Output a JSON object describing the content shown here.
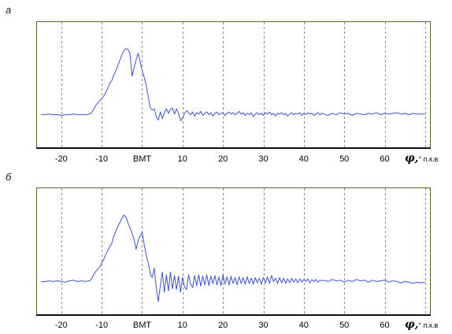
{
  "chart_data": [
    {
      "type": "line",
      "panel_label": "а",
      "xlabel": "φ,° п.к.в",
      "xlim": [
        -26.2,
        71.2
      ],
      "ylim": [
        -50,
        140
      ],
      "grid": true,
      "x_grid": [
        -20,
        -10,
        0,
        10,
        20,
        30,
        40,
        50,
        60,
        70
      ],
      "x_ticks": [
        {
          "value": -20,
          "label": "-20"
        },
        {
          "value": -10,
          "label": "-10"
        },
        {
          "value": 0,
          "label": "ВМТ"
        },
        {
          "value": 10,
          "label": "10"
        },
        {
          "value": 20,
          "label": "20"
        },
        {
          "value": 30,
          "label": "30"
        },
        {
          "value": 40,
          "label": "40"
        },
        {
          "value": 50,
          "label": "50"
        },
        {
          "value": 60,
          "label": "60"
        }
      ],
      "frame_color": "#55662a",
      "axis_color": "#111111",
      "grid_color": "#8c8c8c",
      "series": [
        {
          "color": "#3c54c6",
          "x": [
            -25,
            -24,
            -23,
            -22,
            -21,
            -20,
            -19,
            -18,
            -17,
            -16,
            -15,
            -14,
            -13,
            -12.5,
            -12,
            -11.5,
            -11,
            -10.5,
            -10,
            -9.5,
            -9,
            -8.5,
            -8,
            -7.5,
            -7,
            -6.5,
            -6,
            -5.5,
            -5,
            -4.5,
            -4,
            -3.5,
            -3,
            -2.5,
            -2,
            -1.5,
            -1,
            -0.5,
            0,
            0.5,
            1,
            1.5,
            2,
            2.5,
            3,
            3.5,
            4,
            4.5,
            5,
            5.5,
            6,
            6.5,
            7,
            7.5,
            8,
            8.5,
            9,
            9.5,
            10,
            10.5,
            11,
            11.5,
            12,
            12.5,
            13,
            13.5,
            14,
            14.5,
            15,
            15.5,
            16,
            16.5,
            17,
            17.5,
            18,
            18.5,
            19,
            19.5,
            20,
            20.5,
            21,
            21.5,
            22,
            22.5,
            23,
            23.5,
            24,
            24.5,
            25,
            25.5,
            26,
            26.5,
            27,
            27.5,
            28,
            28.5,
            29,
            29.5,
            30,
            30.5,
            31,
            31.5,
            32,
            32.5,
            33,
            33.5,
            34,
            34.5,
            35,
            35.5,
            36,
            36.5,
            37,
            37.5,
            38,
            38.5,
            39,
            39.5,
            40,
            40.5,
            41,
            41.5,
            42,
            42.5,
            43,
            43.5,
            44,
            44.5,
            45,
            46,
            47,
            48,
            49,
            50,
            51,
            52,
            53,
            54,
            55,
            56,
            57,
            58,
            59,
            60,
            61,
            62,
            63,
            64,
            65,
            66,
            67,
            68,
            69,
            70
          ],
          "y": [
            0,
            0,
            1,
            0,
            0,
            -1,
            0,
            0,
            1,
            0,
            0,
            0,
            1,
            3,
            8,
            14,
            17,
            21,
            24,
            28,
            33,
            40,
            47,
            51,
            60,
            66,
            74,
            82,
            90,
            96,
            99,
            98,
            92,
            58,
            70,
            82,
            92,
            80,
            66,
            56,
            44,
            28,
            10,
            7,
            9,
            -3,
            -8,
            4,
            -6,
            3,
            9,
            2,
            8,
            10,
            1,
            9,
            2,
            -9,
            -5,
            2,
            6,
            3,
            0,
            4,
            -2,
            3,
            1,
            5,
            -1,
            2,
            4,
            0,
            3,
            -2,
            2,
            4,
            0,
            2,
            3,
            -1,
            2,
            4,
            1,
            3,
            0,
            2,
            5,
            1,
            3,
            -1,
            2,
            0,
            3,
            -3,
            1,
            3,
            0,
            2,
            -1,
            3,
            1,
            4,
            0,
            2,
            -2,
            2,
            1,
            3,
            0,
            2,
            -2,
            1,
            3,
            0,
            2,
            1,
            3,
            -1,
            2,
            0,
            3,
            1,
            2,
            -1,
            1,
            3,
            0,
            2,
            1,
            -1,
            2,
            0,
            3,
            1,
            2,
            -1,
            2,
            1,
            0,
            2,
            1,
            3,
            0,
            2,
            1,
            2,
            3,
            1,
            2,
            0,
            2,
            1,
            1,
            1
          ]
        }
      ]
    },
    {
      "type": "line",
      "panel_label": "б",
      "xlabel": "φ,° п.к.в",
      "xlim": [
        -26.2,
        71.2
      ],
      "ylim": [
        -50,
        140
      ],
      "grid": true,
      "x_grid": [
        -20,
        -10,
        0,
        10,
        20,
        30,
        40,
        50,
        60,
        70
      ],
      "x_ticks": [
        {
          "value": -20,
          "label": "-20"
        },
        {
          "value": -10,
          "label": "-10"
        },
        {
          "value": 0,
          "label": "ВМТ"
        },
        {
          "value": 10,
          "label": "10"
        },
        {
          "value": 20,
          "label": "20"
        },
        {
          "value": 30,
          "label": "30"
        },
        {
          "value": 40,
          "label": "40"
        },
        {
          "value": 50,
          "label": "50"
        },
        {
          "value": 60,
          "label": "60"
        }
      ],
      "frame_color": "#55662a",
      "axis_color": "#111111",
      "grid_color": "#8c8c8c",
      "series": [
        {
          "color": "#3c54c6",
          "x": [
            -25,
            -24,
            -23,
            -22,
            -21,
            -20,
            -19,
            -18,
            -17,
            -16,
            -15,
            -14,
            -13,
            -12.5,
            -12,
            -11.5,
            -11,
            -10.5,
            -10,
            -9.5,
            -9,
            -8.5,
            -8,
            -7.5,
            -7,
            -6.5,
            -6,
            -5.5,
            -5,
            -4.5,
            -4,
            -3.5,
            -3,
            -2.5,
            -2,
            -1.5,
            -1,
            -0.5,
            0,
            0.5,
            1,
            1.5,
            2,
            2.5,
            3,
            3.5,
            4,
            4.5,
            5,
            5.5,
            6,
            6.5,
            7,
            7.5,
            8,
            8.5,
            9,
            9.5,
            10,
            10.5,
            11,
            11.5,
            12,
            12.5,
            13,
            13.5,
            14,
            14.5,
            15,
            15.5,
            16,
            16.5,
            17,
            17.5,
            18,
            18.5,
            19,
            19.5,
            20,
            20.5,
            21,
            21.5,
            22,
            22.5,
            23,
            23.5,
            24,
            24.5,
            25,
            25.5,
            26,
            26.5,
            27,
            27.5,
            28,
            28.5,
            29,
            29.5,
            30,
            30.5,
            31,
            31.5,
            32,
            32.5,
            33,
            33.5,
            34,
            34.5,
            35,
            35.5,
            36,
            36.5,
            37,
            37.5,
            38,
            38.5,
            39,
            39.5,
            40,
            40.5,
            41,
            41.5,
            42,
            42.5,
            43,
            43.5,
            44,
            44.5,
            45,
            46,
            47,
            48,
            49,
            50,
            51,
            52,
            53,
            54,
            55,
            56,
            57,
            58,
            59,
            60,
            61,
            62,
            63,
            64,
            65,
            66,
            67,
            68,
            69,
            70
          ],
          "y": [
            0,
            0,
            1,
            0,
            1,
            0,
            -1,
            1,
            2,
            0,
            1,
            0,
            1,
            4,
            10,
            15,
            18,
            22,
            27,
            33,
            40,
            46,
            52,
            57,
            68,
            75,
            82,
            88,
            94,
            99,
            96,
            87,
            80,
            72,
            63,
            48,
            60,
            68,
            73,
            55,
            40,
            28,
            12,
            6,
            20,
            -10,
            -30,
            -6,
            14,
            -16,
            10,
            -14,
            14,
            -11,
            9,
            -12,
            8,
            -16,
            6,
            -8,
            -12,
            10,
            -4,
            -9,
            9,
            -6,
            10,
            -7,
            8,
            -5,
            10,
            -6,
            8,
            -3,
            9,
            -5,
            7,
            -6,
            10,
            -4,
            7,
            -5,
            8,
            -3,
            6,
            -5,
            7,
            -3,
            6,
            -4,
            7,
            -3,
            5,
            -4,
            6,
            -2,
            5,
            -4,
            6,
            -2,
            7,
            -3,
            9,
            0,
            5,
            -3,
            6,
            -2,
            5,
            -3,
            4,
            -2,
            5,
            -1,
            4,
            -2,
            4,
            -1,
            3,
            0,
            4,
            -2,
            3,
            0,
            3,
            -1,
            2,
            1,
            2,
            0,
            3,
            1,
            2,
            -1,
            2,
            0,
            3,
            1,
            2,
            -1,
            2,
            0,
            1,
            2,
            -1,
            1,
            0,
            -2,
            0,
            -1,
            -3,
            -1,
            -2,
            -1
          ]
        }
      ]
    }
  ]
}
